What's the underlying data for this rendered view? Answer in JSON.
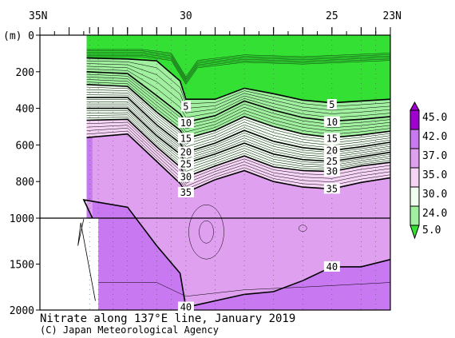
{
  "chart_data": {
    "type": "contour",
    "title": "Nitrate along 137°E line, January 2019",
    "credit": "(C) Japan Meteorological Agency",
    "x_axis": {
      "range_latitude": [
        35,
        23
      ],
      "tick_labels": [
        {
          "lat": 35,
          "text": "35N"
        },
        {
          "lat": 30,
          "text": "30"
        },
        {
          "lat": 25,
          "text": "25"
        },
        {
          "lat": 23,
          "text": "23N"
        }
      ],
      "stations_latitude": [
        33.3,
        33,
        32.5,
        32,
        31.5,
        31,
        30.5,
        30,
        29,
        28,
        27,
        26,
        25,
        24,
        23.5,
        23
      ]
    },
    "y_axis": {
      "label": "(m)",
      "upper_panel": {
        "range": [
          0,
          1000
        ],
        "ticks": [
          0,
          200,
          400,
          600,
          800,
          1000
        ]
      },
      "lower_panel": {
        "range": [
          1000,
          2000
        ],
        "ticks": [
          1500,
          2000
        ]
      }
    },
    "colorbar": {
      "levels": [
        "45.0",
        "42.0",
        "37.0",
        "35.0",
        "30.0",
        "24.0",
        "5.0"
      ],
      "colors": [
        "#a000d0",
        "#c878f0",
        "#e0a0f0",
        "#f6d4f6",
        "#f0fff0",
        "#a0f0a0",
        "#33e033"
      ]
    },
    "contour_labels": [
      {
        "text": "5",
        "lat": 30,
        "depth": 390
      },
      {
        "text": "5",
        "lat": 25,
        "depth": 380
      },
      {
        "text": "10",
        "lat": 30,
        "depth": 480
      },
      {
        "text": "10",
        "lat": 25,
        "depth": 475
      },
      {
        "text": "15",
        "lat": 30,
        "depth": 565
      },
      {
        "text": "15",
        "lat": 25,
        "depth": 565
      },
      {
        "text": "20",
        "lat": 30,
        "depth": 640
      },
      {
        "text": "20",
        "lat": 25,
        "depth": 630
      },
      {
        "text": "25",
        "lat": 30,
        "depth": 705
      },
      {
        "text": "25",
        "lat": 25,
        "depth": 690
      },
      {
        "text": "30",
        "lat": 30,
        "depth": 775
      },
      {
        "text": "30",
        "lat": 25,
        "depth": 745
      },
      {
        "text": "35",
        "lat": 30,
        "depth": 860
      },
      {
        "text": "35",
        "lat": 25,
        "depth": 840
      },
      {
        "text": "40",
        "lat": 25,
        "depth": 1530
      },
      {
        "text": "40",
        "lat": 30,
        "depth": 1970
      }
    ],
    "isolines": [
      {
        "value": 5,
        "lat": [
          33.4,
          32,
          31,
          30.2,
          30,
          29,
          28,
          27,
          26,
          25,
          24,
          23
        ],
        "depth": [
          125,
          130,
          140,
          250,
          350,
          350,
          290,
          320,
          355,
          370,
          360,
          350
        ]
      },
      {
        "value": 10,
        "lat": [
          33.4,
          32,
          31,
          30.2,
          30,
          29,
          28,
          27,
          26,
          25,
          24,
          23
        ],
        "depth": [
          200,
          210,
          330,
          430,
          475,
          440,
          360,
          410,
          450,
          470,
          460,
          445
        ]
      },
      {
        "value": 15,
        "lat": [
          33.4,
          32,
          31,
          30.2,
          30,
          29,
          28,
          27,
          26,
          25,
          24,
          23
        ],
        "depth": [
          270,
          280,
          420,
          520,
          565,
          520,
          445,
          500,
          540,
          560,
          545,
          525
        ]
      },
      {
        "value": 20,
        "lat": [
          33.4,
          32,
          31,
          30.2,
          30,
          29,
          28,
          27,
          26,
          25,
          24,
          23
        ],
        "depth": [
          340,
          340,
          490,
          590,
          640,
          590,
          520,
          580,
          615,
          630,
          610,
          585
        ]
      },
      {
        "value": 25,
        "lat": [
          33.4,
          32,
          31,
          30.2,
          30,
          29,
          28,
          27,
          26,
          25,
          24,
          23
        ],
        "depth": [
          400,
          400,
          550,
          650,
          700,
          650,
          590,
          650,
          680,
          690,
          665,
          640
        ]
      },
      {
        "value": 30,
        "lat": [
          33.4,
          32,
          31,
          30.2,
          30,
          29,
          28,
          27,
          26,
          25,
          24,
          23
        ],
        "depth": [
          465,
          460,
          610,
          720,
          775,
          715,
          660,
          720,
          740,
          745,
          715,
          695
        ]
      },
      {
        "value": 35,
        "lat": [
          33.4,
          32,
          31,
          30.2,
          30,
          29,
          28,
          27,
          26,
          25,
          24,
          23
        ],
        "depth": [
          560,
          540,
          690,
          810,
          860,
          790,
          740,
          800,
          830,
          840,
          805,
          780
        ]
      },
      {
        "value": 40,
        "lat": [
          33.2,
          33.5,
          32,
          31,
          30.2,
          30,
          29,
          28,
          27,
          26,
          25,
          24,
          23
        ],
        "depth": [
          1000,
          900,
          940,
          1300,
          1600,
          1970,
          1900,
          1830,
          1800,
          1680,
          1530,
          1530,
          1450
        ]
      }
    ]
  }
}
